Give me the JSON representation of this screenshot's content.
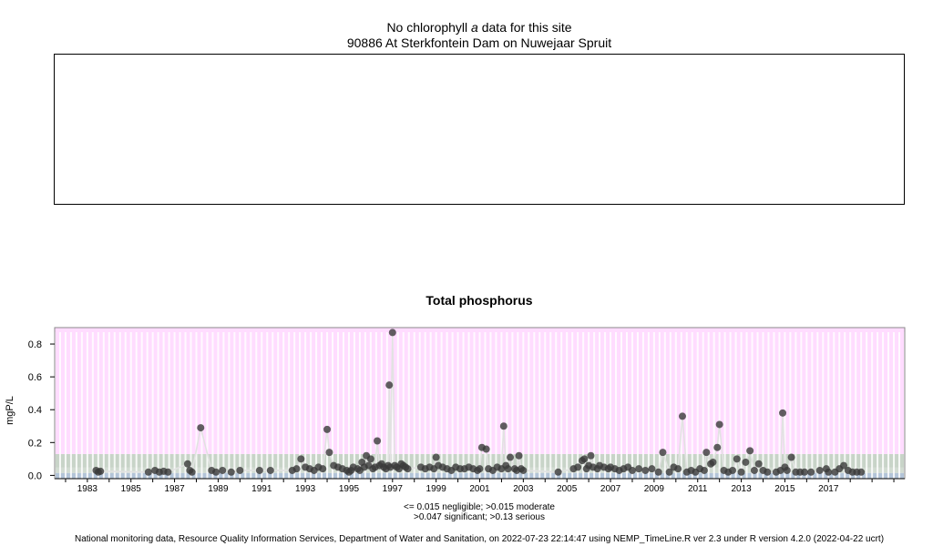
{
  "top_panel": {
    "title_prefix": "No chlorophyll",
    "title_italic": "a",
    "title_suffix": "data for this site",
    "site": "90886 At Sterkfontein Dam on Nuwejaar Spruit"
  },
  "colors": {
    "serious": "#ffdcff",
    "significant": "#c8d4c8",
    "moderate": "#d2dcd2",
    "negligible": "#b3c4d8",
    "point": "#3a3a3a",
    "line": "#e2e2e2",
    "grid": "#ffffff"
  },
  "chart_data": {
    "type": "scatter",
    "title": "Total phosphorus",
    "ylabel": "mgP/L",
    "xlabel": "",
    "xlim": [
      1981.5,
      2020.5
    ],
    "ylim": [
      -0.02,
      0.9
    ],
    "x_ticks": [
      1983,
      1985,
      1987,
      1989,
      1991,
      1993,
      1995,
      1997,
      1999,
      2001,
      2003,
      2005,
      2007,
      2009,
      2011,
      2013,
      2015,
      2017
    ],
    "y_ticks": [
      "0.0",
      "0.2",
      "0.4",
      "0.6",
      "0.8"
    ],
    "bands": [
      {
        "label": "negligible",
        "from": -0.02,
        "to": 0.015
      },
      {
        "label": "moderate",
        "from": 0.015,
        "to": 0.047
      },
      {
        "label": "significant",
        "from": 0.047,
        "to": 0.13
      },
      {
        "label": "serious",
        "from": 0.13,
        "to": 0.9
      }
    ],
    "points": [
      [
        1983.4,
        0.03
      ],
      [
        1983.5,
        0.02
      ],
      [
        1983.6,
        0.025
      ],
      [
        1985.8,
        0.02
      ],
      [
        1986.1,
        0.03
      ],
      [
        1986.3,
        0.02
      ],
      [
        1986.5,
        0.025
      ],
      [
        1986.7,
        0.02
      ],
      [
        1987.6,
        0.07
      ],
      [
        1987.7,
        0.03
      ],
      [
        1987.8,
        0.02
      ],
      [
        1988.2,
        0.29
      ],
      [
        1988.7,
        0.03
      ],
      [
        1988.9,
        0.02
      ],
      [
        1989.2,
        0.03
      ],
      [
        1989.6,
        0.02
      ],
      [
        1990.0,
        0.03
      ],
      [
        1990.9,
        0.03
      ],
      [
        1991.4,
        0.03
      ],
      [
        1992.4,
        0.03
      ],
      [
        1992.6,
        0.04
      ],
      [
        1992.8,
        0.1
      ],
      [
        1993.0,
        0.05
      ],
      [
        1993.2,
        0.04
      ],
      [
        1993.4,
        0.03
      ],
      [
        1993.6,
        0.05
      ],
      [
        1993.8,
        0.04
      ],
      [
        1994.0,
        0.28
      ],
      [
        1994.1,
        0.14
      ],
      [
        1994.3,
        0.06
      ],
      [
        1994.5,
        0.05
      ],
      [
        1994.7,
        0.04
      ],
      [
        1994.9,
        0.03
      ],
      [
        1995.0,
        0.02
      ],
      [
        1995.1,
        0.03
      ],
      [
        1995.2,
        0.05
      ],
      [
        1995.4,
        0.04
      ],
      [
        1995.5,
        0.03
      ],
      [
        1995.6,
        0.08
      ],
      [
        1995.7,
        0.05
      ],
      [
        1995.8,
        0.12
      ],
      [
        1995.9,
        0.06
      ],
      [
        1996.0,
        0.1
      ],
      [
        1996.1,
        0.04
      ],
      [
        1996.2,
        0.05
      ],
      [
        1996.3,
        0.21
      ],
      [
        1996.4,
        0.06
      ],
      [
        1996.5,
        0.07
      ],
      [
        1996.6,
        0.05
      ],
      [
        1996.7,
        0.04
      ],
      [
        1996.8,
        0.06
      ],
      [
        1996.85,
        0.55
      ],
      [
        1996.9,
        0.05
      ],
      [
        1997.0,
        0.87
      ],
      [
        1997.1,
        0.06
      ],
      [
        1997.2,
        0.05
      ],
      [
        1997.3,
        0.04
      ],
      [
        1997.4,
        0.07
      ],
      [
        1997.5,
        0.06
      ],
      [
        1997.6,
        0.05
      ],
      [
        1997.7,
        0.04
      ],
      [
        1998.3,
        0.05
      ],
      [
        1998.5,
        0.04
      ],
      [
        1998.7,
        0.05
      ],
      [
        1998.9,
        0.04
      ],
      [
        1999.0,
        0.11
      ],
      [
        1999.1,
        0.06
      ],
      [
        1999.3,
        0.05
      ],
      [
        1999.5,
        0.04
      ],
      [
        1999.7,
        0.03
      ],
      [
        1999.9,
        0.05
      ],
      [
        2000.1,
        0.04
      ],
      [
        2000.3,
        0.04
      ],
      [
        2000.5,
        0.05
      ],
      [
        2000.7,
        0.04
      ],
      [
        2000.9,
        0.03
      ],
      [
        2001.0,
        0.04
      ],
      [
        2001.1,
        0.17
      ],
      [
        2001.3,
        0.16
      ],
      [
        2001.4,
        0.04
      ],
      [
        2001.6,
        0.03
      ],
      [
        2001.8,
        0.05
      ],
      [
        2002.0,
        0.04
      ],
      [
        2002.1,
        0.3
      ],
      [
        2002.2,
        0.06
      ],
      [
        2002.3,
        0.04
      ],
      [
        2002.4,
        0.11
      ],
      [
        2002.6,
        0.04
      ],
      [
        2002.7,
        0.03
      ],
      [
        2002.8,
        0.12
      ],
      [
        2002.9,
        0.04
      ],
      [
        2003.0,
        0.03
      ],
      [
        2004.6,
        0.02
      ],
      [
        2005.3,
        0.04
      ],
      [
        2005.5,
        0.05
      ],
      [
        2005.7,
        0.09
      ],
      [
        2005.8,
        0.1
      ],
      [
        2005.9,
        0.04
      ],
      [
        2006.0,
        0.06
      ],
      [
        2006.1,
        0.12
      ],
      [
        2006.2,
        0.05
      ],
      [
        2006.4,
        0.04
      ],
      [
        2006.5,
        0.06
      ],
      [
        2006.7,
        0.05
      ],
      [
        2006.9,
        0.04
      ],
      [
        2007.0,
        0.05
      ],
      [
        2007.2,
        0.04
      ],
      [
        2007.4,
        0.03
      ],
      [
        2007.6,
        0.04
      ],
      [
        2007.8,
        0.05
      ],
      [
        2008.0,
        0.03
      ],
      [
        2008.3,
        0.04
      ],
      [
        2008.6,
        0.03
      ],
      [
        2008.9,
        0.04
      ],
      [
        2009.2,
        0.02
      ],
      [
        2009.4,
        0.14
      ],
      [
        2009.7,
        0.02
      ],
      [
        2009.9,
        0.05
      ],
      [
        2010.1,
        0.04
      ],
      [
        2010.3,
        0.36
      ],
      [
        2010.5,
        0.02
      ],
      [
        2010.7,
        0.03
      ],
      [
        2010.9,
        0.02
      ],
      [
        2011.1,
        0.04
      ],
      [
        2011.3,
        0.03
      ],
      [
        2011.4,
        0.14
      ],
      [
        2011.6,
        0.07
      ],
      [
        2011.7,
        0.08
      ],
      [
        2011.9,
        0.17
      ],
      [
        2012.0,
        0.31
      ],
      [
        2012.2,
        0.03
      ],
      [
        2012.4,
        0.02
      ],
      [
        2012.6,
        0.03
      ],
      [
        2012.8,
        0.1
      ],
      [
        2013.0,
        0.02
      ],
      [
        2013.2,
        0.08
      ],
      [
        2013.4,
        0.15
      ],
      [
        2013.6,
        0.03
      ],
      [
        2013.8,
        0.07
      ],
      [
        2014.0,
        0.03
      ],
      [
        2014.2,
        0.02
      ],
      [
        2014.6,
        0.02
      ],
      [
        2014.8,
        0.03
      ],
      [
        2014.9,
        0.38
      ],
      [
        2015.0,
        0.05
      ],
      [
        2015.1,
        0.03
      ],
      [
        2015.3,
        0.11
      ],
      [
        2015.5,
        0.02
      ],
      [
        2015.7,
        0.02
      ],
      [
        2015.9,
        0.02
      ],
      [
        2016.2,
        0.02
      ],
      [
        2016.6,
        0.03
      ],
      [
        2016.9,
        0.04
      ],
      [
        2017.0,
        0.02
      ],
      [
        2017.3,
        0.02
      ],
      [
        2017.5,
        0.04
      ],
      [
        2017.7,
        0.06
      ],
      [
        2017.9,
        0.03
      ],
      [
        2018.1,
        0.02
      ],
      [
        2018.3,
        0.02
      ],
      [
        2018.5,
        0.02
      ]
    ]
  },
  "legend": {
    "line1": "<= 0.015 negligible; >0.015 moderate",
    "line2": ">0.047 significant; >0.13 serious"
  },
  "footer": "National monitoring data, Resource Quality Information Services, Department of Water and Sanitation, on 2022-07-23 22:14:47 using NEMP_TimeLine.R ver 2.3 under R version 4.2.0 (2022-04-22 ucrt)"
}
